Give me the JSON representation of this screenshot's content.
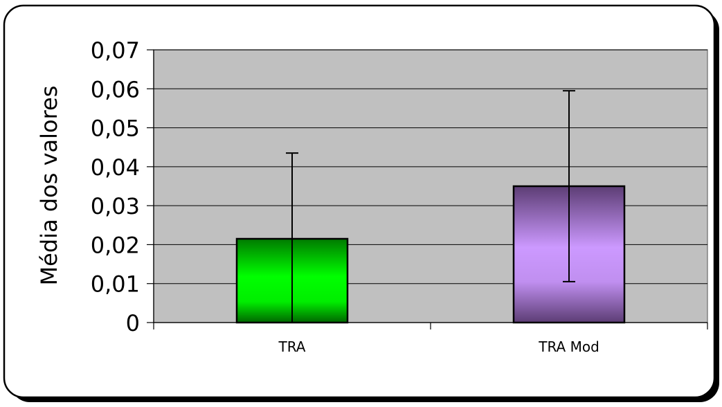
{
  "chart_data": {
    "type": "bar",
    "title": "",
    "xlabel": "",
    "ylabel": "Média dos valores",
    "categories": [
      "TRA",
      "TRA Mod"
    ],
    "values": [
      0.0215,
      0.035
    ],
    "error_upper": [
      0.0435,
      0.0595
    ],
    "error_lower": [
      0.0,
      0.0105
    ],
    "ylim": [
      0,
      0.07
    ],
    "yticks": [
      "0",
      "0,01",
      "0,02",
      "0,03",
      "0,04",
      "0,05",
      "0,06",
      "0,07"
    ],
    "grid": true,
    "legend": "none",
    "colors": {
      "plot_background": "#c0c0c0",
      "bar_TRA": "#00ff00",
      "bar_TRA_dark": "#006600",
      "bar_TRA_Mod": "#cc99ff",
      "bar_TRA_Mod_dark": "#5c3d74"
    }
  }
}
